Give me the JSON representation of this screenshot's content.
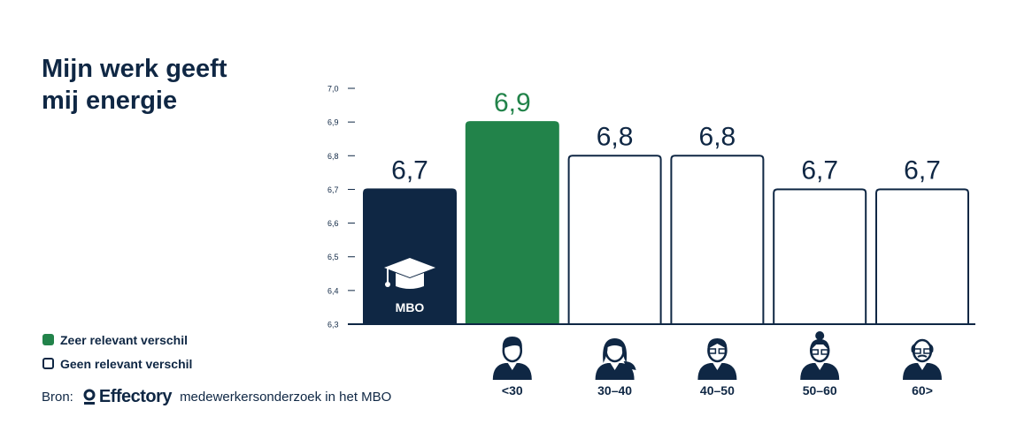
{
  "title_lines": [
    "Mijn werk geeft",
    "mij energie"
  ],
  "legend": {
    "items": [
      {
        "label": "Zeer relevant verschil",
        "color": "#22834a"
      },
      {
        "label": "Geen relevant verschil",
        "color": "#ffffff"
      }
    ]
  },
  "source": {
    "prefix": "Bron:",
    "brand": "Effectory",
    "suffix": "medewerkersonderzoek in het MBO"
  },
  "colors": {
    "navy": "#0f2744",
    "green": "#22834a",
    "white": "#ffffff"
  },
  "chart_data": {
    "type": "bar",
    "title": "Mijn werk geeft mij energie",
    "categories": [
      "MBO",
      "<30",
      "30-40",
      "40-50",
      "50-60",
      "60>"
    ],
    "values": [
      6.7,
      6.9,
      6.8,
      6.8,
      6.7,
      6.7
    ],
    "value_labels": [
      "6,7",
      "6,9",
      "6,8",
      "6,8",
      "6,7",
      "6,7"
    ],
    "bar_styles": [
      "navy",
      "green",
      "white",
      "white",
      "white",
      "white"
    ],
    "icons": [
      "graduation-cap-icon",
      "young-man-icon",
      "woman-icon",
      "man-glasses-icon",
      "woman-bun-icon",
      "old-man-icon"
    ],
    "ylim": [
      6.3,
      7.0
    ],
    "y_ticks": [
      6.3,
      6.4,
      6.5,
      6.6,
      6.7,
      6.8,
      6.9,
      7.0
    ],
    "y_tick_labels": [
      "6,3",
      "6,4",
      "6,5",
      "6,6",
      "6,7",
      "6,8",
      "6,9",
      "7,0"
    ],
    "xlabel": "",
    "ylabel": "",
    "grid": false
  }
}
